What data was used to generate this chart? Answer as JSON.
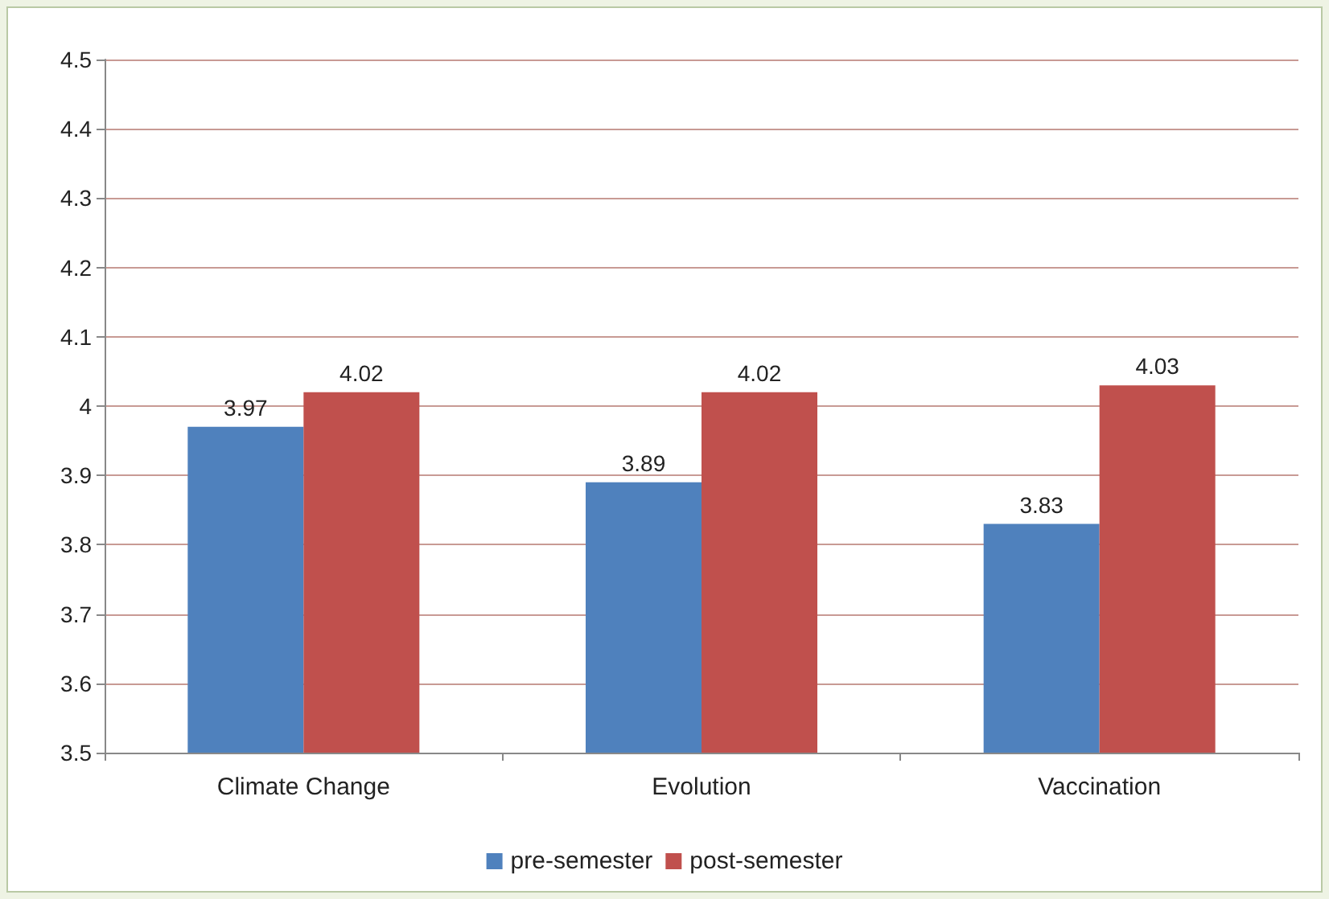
{
  "chart_data": {
    "type": "bar",
    "categories": [
      "Climate Change",
      "Evolution",
      "Vaccination"
    ],
    "series": [
      {
        "name": "pre-semester",
        "color": "#4f81bd",
        "values": [
          3.97,
          3.89,
          3.83
        ]
      },
      {
        "name": "post-semester",
        "color": "#c0504d",
        "values": [
          4.02,
          4.02,
          4.03
        ]
      }
    ],
    "ylim": [
      3.5,
      4.5
    ],
    "yticks": [
      3.5,
      3.6,
      3.7,
      3.8,
      3.9,
      4,
      4.1,
      4.2,
      4.3,
      4.4,
      4.5
    ],
    "grid": "y",
    "legend": "bottom",
    "data_labels": true
  }
}
